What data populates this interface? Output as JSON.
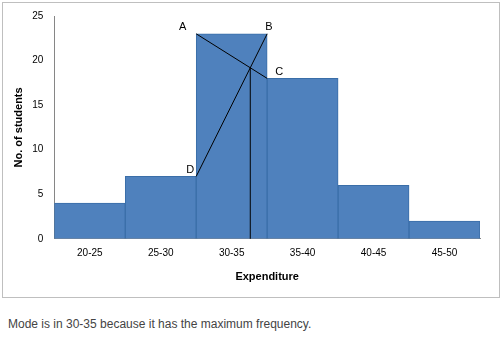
{
  "chart_data": {
    "type": "bar",
    "categories": [
      "20-25",
      "25-30",
      "30-35",
      "35-40",
      "40-45",
      "45-50"
    ],
    "values": [
      4,
      7,
      23,
      18,
      6,
      2
    ],
    "color": "#4f81bd",
    "x_label": "Expenditure",
    "y_label": "No. of students",
    "ylim": [
      0,
      25
    ],
    "yticks": [
      0,
      5,
      10,
      15,
      20,
      25
    ],
    "grid": false,
    "annotations": [
      "A",
      "B",
      "C",
      "D"
    ],
    "caption": "Mode is in 30-35 because it has the maximum frequency."
  }
}
